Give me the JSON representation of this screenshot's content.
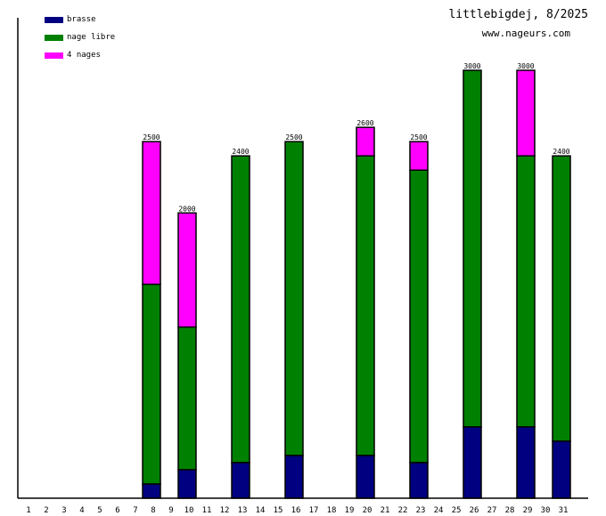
{
  "chart_data": {
    "type": "bar",
    "stacked": true,
    "title": "littlebigdej, 8/2025",
    "subtitle": "www.nageurs.com",
    "xlabel": "",
    "ylabel": "",
    "ylim": [
      0,
      3000
    ],
    "categories": [
      "1",
      "2",
      "3",
      "4",
      "5",
      "6",
      "7",
      "8",
      "9",
      "10",
      "11",
      "12",
      "13",
      "14",
      "15",
      "16",
      "17",
      "18",
      "19",
      "20",
      "21",
      "22",
      "23",
      "24",
      "25",
      "26",
      "27",
      "28",
      "29",
      "30",
      "31"
    ],
    "series": [
      {
        "name": "brasse",
        "color": "#000080",
        "values": [
          0,
          0,
          0,
          0,
          0,
          0,
          0,
          100,
          0,
          200,
          0,
          0,
          250,
          0,
          0,
          300,
          0,
          0,
          0,
          300,
          0,
          0,
          250,
          0,
          0,
          500,
          0,
          0,
          500,
          0,
          400
        ]
      },
      {
        "name": "nage libre",
        "color": "#008000",
        "values": [
          0,
          0,
          0,
          0,
          0,
          0,
          0,
          1400,
          0,
          1000,
          0,
          0,
          2150,
          0,
          0,
          2200,
          0,
          0,
          0,
          2100,
          0,
          0,
          2050,
          0,
          0,
          2500,
          0,
          0,
          1900,
          0,
          2000
        ]
      },
      {
        "name": "4 nages",
        "color": "#ff00ff",
        "values": [
          0,
          0,
          0,
          0,
          0,
          0,
          0,
          1000,
          0,
          800,
          0,
          0,
          0,
          0,
          0,
          0,
          0,
          0,
          0,
          200,
          0,
          0,
          200,
          0,
          0,
          0,
          0,
          0,
          600,
          0,
          0
        ]
      }
    ],
    "totals": [
      0,
      0,
      0,
      0,
      0,
      0,
      0,
      2500,
      0,
      2000,
      0,
      0,
      2400,
      0,
      0,
      2500,
      0,
      0,
      0,
      2600,
      0,
      0,
      2500,
      0,
      0,
      3000,
      0,
      0,
      3000,
      0,
      2400
    ],
    "legend_position": "top-left",
    "grid": false
  }
}
